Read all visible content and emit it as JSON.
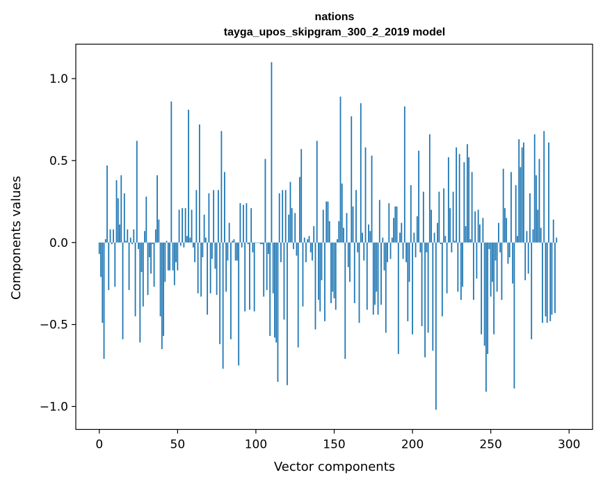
{
  "chart_data": {
    "type": "bar",
    "title": "nations",
    "subtitle": "tayga_upos_skipgram_300_2_2019 model",
    "xlabel": "Vector components",
    "ylabel": "Components values",
    "xlim": [
      -15,
      315
    ],
    "ylim": [
      -1.14,
      1.21
    ],
    "xticks": [
      0,
      50,
      100,
      150,
      200,
      250,
      300
    ],
    "xtick_labels": [
      "0",
      "50",
      "100",
      "150",
      "200",
      "250",
      "300"
    ],
    "yticks": [
      -1.0,
      -0.5,
      0.0,
      0.5,
      1.0
    ],
    "ytick_labels": [
      "−1.0",
      "−0.5",
      "0.0",
      "0.5",
      "1.0"
    ],
    "bar_color": "#1f77b4",
    "grid": false,
    "values": [
      -0.07,
      -0.21,
      -0.49,
      -0.71,
      0.02,
      0.47,
      -0.29,
      0.08,
      -0.01,
      0.08,
      -0.27,
      0.38,
      0.27,
      0.11,
      0.41,
      -0.59,
      0.3,
      0.01,
      0.08,
      -0.29,
      0.03,
      -0.01,
      0.08,
      -0.45,
      0.62,
      -0.04,
      -0.61,
      -0.18,
      -0.39,
      0.07,
      0.28,
      -0.32,
      -0.09,
      -0.19,
      -0.01,
      -0.27,
      0.08,
      0.41,
      0.14,
      -0.45,
      -0.65,
      -0.57,
      -0.24,
      0.01,
      -0.17,
      -0.17,
      0.86,
      -0.17,
      -0.26,
      -0.12,
      -0.17,
      0.2,
      -0.02,
      0.21,
      -0.03,
      0.21,
      0.04,
      0.81,
      0.03,
      0.2,
      -0.03,
      -0.12,
      0.32,
      -0.31,
      0.72,
      -0.33,
      -0.09,
      0.17,
      0.03,
      -0.44,
      0.3,
      -0.31,
      -0.1,
      0.32,
      -0.16,
      -0.32,
      0.32,
      -0.62,
      0.68,
      -0.77,
      0.43,
      -0.3,
      -0.11,
      0.12,
      -0.59,
      0.01,
      0.02,
      -0.11,
      -0.11,
      -0.75,
      0.24,
      -0.03,
      0.23,
      -0.42,
      0.24,
      -0.01,
      -0.41,
      0.21,
      -0.06,
      -0.42,
      0.0,
      0.0,
      0.0,
      -0.01,
      -0.01,
      -0.33,
      0.51,
      -0.29,
      -0.07,
      -0.57,
      1.1,
      -0.31,
      -0.58,
      -0.61,
      -0.85,
      0.3,
      -0.12,
      0.32,
      -0.47,
      0.32,
      -0.87,
      0.17,
      0.37,
      0.21,
      -0.04,
      0.18,
      -0.08,
      -0.64,
      0.4,
      0.57,
      -0.39,
      0.03,
      -0.12,
      0.02,
      0.04,
      -0.06,
      -0.11,
      0.1,
      -0.53,
      0.62,
      -0.35,
      -0.42,
      -0.23,
      0.2,
      -0.48,
      0.25,
      0.25,
      0.13,
      -0.37,
      -0.3,
      -0.34,
      -0.41,
      0.02,
      0.13,
      0.89,
      0.36,
      0.09,
      -0.71,
      0.18,
      -0.15,
      -0.24,
      0.77,
      0.22,
      -0.37,
      0.32,
      -0.06,
      -0.49,
      0.85,
      0.06,
      -0.11,
      0.58,
      -0.41,
      0.11,
      0.07,
      0.53,
      -0.44,
      -0.38,
      -0.3,
      -0.44,
      0.26,
      -0.38,
      0.03,
      -0.17,
      -0.55,
      -0.12,
      0.24,
      -0.1,
      0.03,
      0.15,
      0.22,
      0.22,
      -0.68,
      0.06,
      0.12,
      -0.1,
      0.83,
      -0.12,
      -0.48,
      -0.24,
      0.35,
      -0.56,
      0.06,
      -0.09,
      0.16,
      0.56,
      -0.06,
      -0.51,
      0.31,
      -0.7,
      -0.06,
      -0.55,
      0.66,
      0.2,
      -0.66,
      0.06,
      -1.02,
      0.12,
      0.31,
      -0.01,
      -0.45,
      0.33,
      0.04,
      -0.31,
      0.52,
      0.21,
      -0.06,
      0.31,
      0.01,
      0.58,
      -0.3,
      0.54,
      -0.35,
      -0.27,
      0.49,
      0.1,
      0.6,
      0.52,
      0.02,
      0.43,
      -0.35,
      0.19,
      -0.22,
      0.2,
      0.11,
      -0.56,
      0.15,
      -0.63,
      -0.91,
      -0.68,
      -0.04,
      -0.33,
      -0.24,
      -0.56,
      -0.11,
      -0.3,
      0.12,
      -0.06,
      -0.35,
      0.45,
      0.21,
      0.15,
      -0.13,
      -0.09,
      0.43,
      -0.25,
      -0.89,
      0.35,
      0.04,
      0.63,
      0.46,
      0.58,
      0.61,
      -0.23,
      0.07,
      -0.19,
      0.3,
      -0.59,
      0.08,
      0.66,
      0.41,
      0.2,
      0.51,
      0.09,
      -0.49,
      0.68,
      -0.45,
      -0.49,
      0.61,
      -0.48,
      -0.44,
      0.14,
      -0.43,
      0.03
    ]
  }
}
